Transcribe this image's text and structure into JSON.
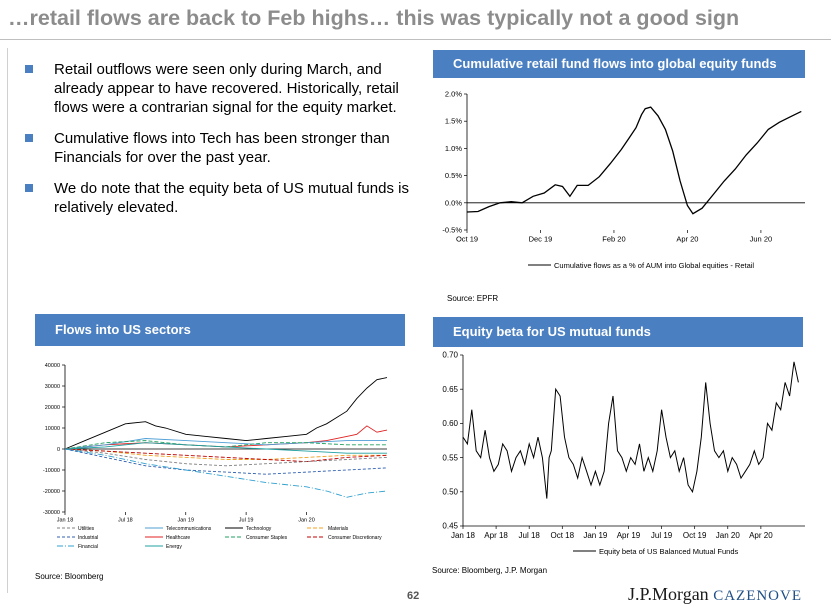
{
  "slide": {
    "title": "…retail flows are back to Feb highs… this was typically not a good sign",
    "bullets": [
      "Retail outflows were seen only during March, and already appear to have recovered. Historically, retail flows were a contrarian signal for the equity market.",
      "Cumulative flows into Tech has been stronger than Financials for over the past year.",
      "We do note that the equity beta of US mutual funds is relatively elevated."
    ],
    "page_number": "62",
    "logo_text": "J.P.Morgan",
    "logo_brand": "CAZENOVE"
  },
  "colors": {
    "accent": "#4a7fc1",
    "title_gray": "#8c8c8c"
  },
  "panels": {
    "retail": {
      "header": "Cumulative retail fund flows into global equity funds",
      "source": "Source:  EPFR"
    },
    "sectors": {
      "header": "Flows into US sectors",
      "source": "Source: Bloomberg"
    },
    "beta": {
      "header": "Equity beta for US mutual funds",
      "source": "Source: Bloomberg, J.P. Morgan"
    }
  },
  "chart_data": [
    {
      "id": "retail",
      "type": "line",
      "ytick_labels": [
        "2.0%",
        "1.5%",
        "1.0%",
        "0.5%",
        "0.0%",
        "-0.5%"
      ],
      "yticks": [
        2.0,
        1.5,
        1.0,
        0.5,
        0.0,
        -0.5
      ],
      "ylim": [
        -0.5,
        2.0
      ],
      "xtick_labels": [
        "Oct 19",
        "Dec 19",
        "Feb 20",
        "Apr 20",
        "Jun 20"
      ],
      "xticks": [
        0,
        2,
        4,
        6,
        8
      ],
      "xlim": [
        0,
        9.2
      ],
      "legend": "Cumulative flows as a  % of AUM into Global equities - Retail",
      "series": [
        {
          "name": "Cumulative flows as a  % of AUM into Global equities - Retail",
          "x": [
            0,
            0.3,
            0.6,
            0.9,
            1.2,
            1.5,
            1.8,
            2.1,
            2.4,
            2.6,
            2.8,
            3.0,
            3.3,
            3.6,
            3.9,
            4.2,
            4.4,
            4.6,
            4.75,
            4.85,
            5.0,
            5.2,
            5.4,
            5.6,
            5.8,
            6.0,
            6.15,
            6.4,
            6.7,
            7.0,
            7.3,
            7.6,
            7.9,
            8.2,
            8.5,
            8.8,
            9.1
          ],
          "values": [
            -0.17,
            -0.16,
            -0.07,
            0.0,
            0.02,
            0.0,
            0.12,
            0.18,
            0.33,
            0.3,
            0.12,
            0.32,
            0.32,
            0.48,
            0.72,
            0.98,
            1.18,
            1.38,
            1.62,
            1.73,
            1.76,
            1.6,
            1.35,
            0.95,
            0.4,
            -0.05,
            -0.2,
            -0.1,
            0.15,
            0.4,
            0.62,
            0.88,
            1.1,
            1.35,
            1.48,
            1.58,
            1.68
          ]
        }
      ]
    },
    {
      "id": "sectors",
      "type": "line",
      "ytick_labels": [
        "40000",
        "30000",
        "20000",
        "10000",
        "0",
        "-10000",
        "-20000",
        "-30000"
      ],
      "yticks": [
        40000,
        30000,
        20000,
        10000,
        0,
        -10000,
        -20000,
        -30000
      ],
      "ylim": [
        -30000,
        40000
      ],
      "xtick_labels": [
        "Jan 18",
        "Jul 18",
        "Jan 19",
        "Jul 19",
        "Jan 20"
      ],
      "xticks": [
        0,
        6,
        12,
        18,
        24
      ],
      "xlim": [
        0,
        32
      ],
      "legend_items": [
        {
          "label": "Utilities",
          "color": "#7f7f7f",
          "dash": "3,2"
        },
        {
          "label": "Telecommunications",
          "color": "#4f9fd6",
          "dash": ""
        },
        {
          "label": "Technology",
          "color": "#000000",
          "dash": ""
        },
        {
          "label": "Materials",
          "color": "#f0a020",
          "dash": "4,2"
        },
        {
          "label": "Industrial",
          "color": "#3060b0",
          "dash": "3,2"
        },
        {
          "label": "Healthcare",
          "color": "#e02020",
          "dash": ""
        },
        {
          "label": "Consumer Staples",
          "color": "#20a060",
          "dash": "4,2"
        },
        {
          "label": "Consumer Discretionary",
          "color": "#c00000",
          "dash": "4,2"
        },
        {
          "label": "Financial",
          "color": "#30a0d0",
          "dash": "6,2,1,2"
        },
        {
          "label": "Energy",
          "color": "#20a0a0",
          "dash": ""
        }
      ],
      "series": [
        {
          "name": "Technology",
          "x": [
            0,
            2,
            4,
            6,
            8,
            9,
            10,
            12,
            14,
            16,
            18,
            20,
            22,
            24,
            25,
            26,
            27,
            28,
            29,
            30,
            31,
            32
          ],
          "values": [
            0,
            4000,
            8000,
            12000,
            13000,
            11000,
            10000,
            7000,
            6000,
            5000,
            4000,
            5000,
            6000,
            7000,
            10000,
            12000,
            15000,
            18000,
            24000,
            29000,
            33000,
            34000
          ]
        },
        {
          "name": "Healthcare",
          "x": [
            0,
            4,
            8,
            12,
            16,
            20,
            24,
            26,
            28,
            29,
            30,
            31,
            32
          ],
          "values": [
            0,
            2000,
            3000,
            2000,
            1000,
            2000,
            3000,
            4000,
            6000,
            7000,
            11000,
            8000,
            9000
          ]
        },
        {
          "name": "Telecommunications",
          "x": [
            0,
            4,
            8,
            12,
            16,
            20,
            24,
            28,
            32
          ],
          "values": [
            0,
            2000,
            5000,
            4000,
            3000,
            2000,
            3000,
            4000,
            4000
          ]
        },
        {
          "name": "Consumer Staples",
          "x": [
            0,
            4,
            8,
            12,
            16,
            20,
            24,
            28,
            32
          ],
          "values": [
            0,
            3000,
            4000,
            2000,
            1000,
            3000,
            3000,
            2000,
            2000
          ]
        },
        {
          "name": "Energy",
          "x": [
            0,
            4,
            8,
            12,
            16,
            20,
            24,
            28,
            32
          ],
          "values": [
            0,
            1000,
            3000,
            2000,
            1000,
            0,
            -1000,
            -2000,
            -2000
          ]
        },
        {
          "name": "Materials",
          "x": [
            0,
            4,
            8,
            12,
            16,
            20,
            24,
            28,
            32
          ],
          "values": [
            0,
            -1000,
            -3000,
            -4000,
            -5000,
            -5000,
            -4000,
            -3000,
            -3000
          ]
        },
        {
          "name": "Consumer Discretionary",
          "x": [
            0,
            4,
            8,
            12,
            16,
            20,
            24,
            28,
            32
          ],
          "values": [
            0,
            -1000,
            -2000,
            -3000,
            -4000,
            -5000,
            -6000,
            -4000,
            -3000
          ]
        },
        {
          "name": "Utilities",
          "x": [
            0,
            4,
            8,
            12,
            16,
            20,
            24,
            28,
            32
          ],
          "values": [
            0,
            -2000,
            -5000,
            -7000,
            -8000,
            -7000,
            -6000,
            -5000,
            -4000
          ]
        },
        {
          "name": "Industrial",
          "x": [
            0,
            4,
            8,
            12,
            16,
            20,
            24,
            28,
            32
          ],
          "values": [
            0,
            -4000,
            -8000,
            -10000,
            -11000,
            -12000,
            -11000,
            -10000,
            -9000
          ]
        },
        {
          "name": "Financial",
          "x": [
            0,
            4,
            8,
            12,
            16,
            20,
            24,
            26,
            28,
            30,
            32
          ],
          "values": [
            0,
            -3000,
            -7000,
            -10000,
            -13000,
            -16000,
            -18000,
            -20000,
            -23000,
            -21000,
            -20000
          ]
        }
      ]
    },
    {
      "id": "beta",
      "type": "line",
      "ytick_labels": [
        "0.70",
        "0.65",
        "0.60",
        "0.55",
        "0.50",
        "0.45"
      ],
      "yticks": [
        0.7,
        0.65,
        0.6,
        0.55,
        0.5,
        0.45
      ],
      "ylim": [
        0.45,
        0.7
      ],
      "xtick_labels": [
        "Jan 18",
        "Apr 18",
        "Jul 18",
        "Oct 18",
        "Jan 19",
        "Apr 19",
        "Jul 19",
        "Oct 19",
        "Jan 20",
        "Apr 20"
      ],
      "xticks": [
        0,
        3,
        6,
        9,
        12,
        15,
        18,
        21,
        24,
        27
      ],
      "xlim": [
        0,
        31
      ],
      "legend": "Equity beta of US Balanced Mutual Funds",
      "series": [
        {
          "name": "Equity beta of US Balanced Mutual Funds",
          "x": [
            0,
            0.4,
            0.8,
            1.2,
            1.6,
            2.0,
            2.4,
            2.8,
            3.2,
            3.6,
            4.0,
            4.4,
            4.8,
            5.2,
            5.6,
            6.0,
            6.4,
            6.8,
            7.2,
            7.4,
            7.6,
            7.8,
            8.0,
            8.4,
            8.8,
            9.2,
            9.6,
            10.0,
            10.4,
            10.8,
            11.2,
            11.6,
            12.0,
            12.4,
            12.8,
            13.2,
            13.6,
            14.0,
            14.4,
            14.8,
            15.2,
            15.6,
            16.0,
            16.4,
            16.8,
            17.2,
            17.6,
            18.0,
            18.4,
            18.8,
            19.2,
            19.6,
            20.0,
            20.4,
            20.8,
            21.2,
            21.6,
            22.0,
            22.4,
            22.8,
            23.2,
            23.6,
            24.0,
            24.4,
            24.8,
            25.2,
            25.6,
            26.0,
            26.4,
            26.8,
            27.2,
            27.6,
            28.0,
            28.4,
            28.8,
            29.2,
            29.6,
            30.0,
            30.4
          ],
          "values": [
            0.58,
            0.57,
            0.62,
            0.56,
            0.55,
            0.59,
            0.55,
            0.53,
            0.54,
            0.57,
            0.56,
            0.53,
            0.55,
            0.56,
            0.54,
            0.57,
            0.55,
            0.58,
            0.55,
            0.52,
            0.49,
            0.55,
            0.56,
            0.65,
            0.64,
            0.58,
            0.55,
            0.54,
            0.52,
            0.55,
            0.53,
            0.51,
            0.53,
            0.51,
            0.53,
            0.6,
            0.64,
            0.56,
            0.55,
            0.53,
            0.55,
            0.54,
            0.57,
            0.53,
            0.55,
            0.53,
            0.56,
            0.62,
            0.58,
            0.55,
            0.56,
            0.53,
            0.55,
            0.51,
            0.5,
            0.53,
            0.58,
            0.66,
            0.6,
            0.56,
            0.55,
            0.56,
            0.53,
            0.55,
            0.54,
            0.52,
            0.53,
            0.54,
            0.56,
            0.54,
            0.55,
            0.6,
            0.59,
            0.63,
            0.62,
            0.66,
            0.64,
            0.69,
            0.66
          ]
        }
      ]
    }
  ]
}
